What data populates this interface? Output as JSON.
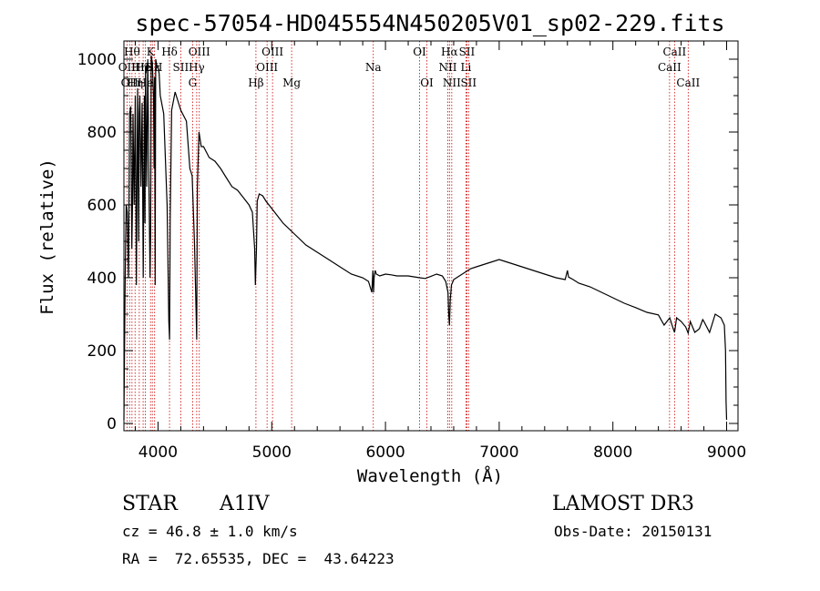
{
  "chart_data": {
    "type": "line",
    "title": "spec-57054-HD045554N450205V01_sp02-229.fits",
    "xlabel": "Wavelength (Å)",
    "ylabel": "Flux (relative)",
    "xlim": [
      3700,
      9100
    ],
    "ylim": [
      -20,
      1050
    ],
    "xticks": [
      4000,
      5000,
      6000,
      7000,
      8000,
      9000
    ],
    "yticks": [
      0,
      200,
      400,
      600,
      800,
      1000
    ],
    "series": [
      {
        "name": "flux",
        "color": "#000000",
        "x": [
          3700,
          3705,
          3710,
          3715,
          3720,
          3730,
          3740,
          3750,
          3760,
          3770,
          3775,
          3780,
          3790,
          3800,
          3810,
          3820,
          3830,
          3835,
          3840,
          3850,
          3860,
          3870,
          3880,
          3885,
          3890,
          3900,
          3910,
          3920,
          3930,
          3935,
          3940,
          3950,
          3960,
          3965,
          3970,
          3975,
          3980,
          3990,
          4000,
          4010,
          4020,
          4050,
          4080,
          4095,
          4101,
          4107,
          4120,
          4150,
          4200,
          4250,
          4280,
          4300,
          4320,
          4335,
          4340,
          4346,
          4360,
          4380,
          4400,
          4450,
          4500,
          4550,
          4600,
          4650,
          4700,
          4750,
          4800,
          4830,
          4850,
          4856,
          4861,
          4866,
          4872,
          4890,
          4920,
          4950,
          5000,
          5050,
          5100,
          5200,
          5300,
          5400,
          5500,
          5600,
          5700,
          5800,
          5850,
          5880,
          5890,
          5895,
          5900,
          5910,
          5920,
          5950,
          6000,
          6050,
          6100,
          6200,
          6300,
          6350,
          6400,
          6450,
          6500,
          6530,
          6550,
          6556,
          6563,
          6570,
          6580,
          6600,
          6650,
          6700,
          6750,
          6800,
          6900,
          7000,
          7050,
          7100,
          7200,
          7300,
          7400,
          7500,
          7580,
          7600,
          7610,
          7650,
          7700,
          7800,
          7900,
          8000,
          8100,
          8200,
          8300,
          8400,
          8450,
          8500,
          8530,
          8542,
          8560,
          8600,
          8640,
          8662,
          8680,
          8720,
          8760,
          8790,
          8800,
          8850,
          8900,
          8950,
          8980,
          8990,
          8995,
          9000
        ],
        "values": [
          10,
          180,
          350,
          500,
          600,
          580,
          400,
          850,
          870,
          480,
          600,
          850,
          600,
          900,
          380,
          920,
          500,
          850,
          900,
          650,
          880,
          400,
          900,
          550,
          980,
          650,
          1000,
          650,
          400,
          520,
          1010,
          990,
          900,
          700,
          950,
          380,
          1000,
          980,
          980,
          960,
          900,
          850,
          600,
          280,
          230,
          560,
          860,
          910,
          860,
          830,
          700,
          680,
          500,
          300,
          230,
          650,
          800,
          760,
          760,
          730,
          720,
          700,
          675,
          650,
          640,
          620,
          600,
          580,
          480,
          380,
          430,
          480,
          610,
          630,
          625,
          610,
          590,
          570,
          550,
          520,
          490,
          470,
          450,
          430,
          410,
          400,
          390,
          360,
          420,
          360,
          400,
          420,
          410,
          405,
          410,
          408,
          405,
          405,
          400,
          398,
          404,
          410,
          405,
          390,
          360,
          300,
          270,
          340,
          380,
          395,
          405,
          415,
          425,
          430,
          440,
          450,
          445,
          440,
          430,
          420,
          410,
          400,
          395,
          420,
          402,
          395,
          385,
          375,
          360,
          345,
          330,
          318,
          305,
          298,
          270,
          290,
          260,
          250,
          290,
          280,
          265,
          248,
          280,
          250,
          260,
          285,
          280,
          250,
          300,
          290,
          270,
          200,
          60,
          10
        ]
      }
    ],
    "spectral_lines": [
      {
        "wavelength": 3727,
        "label": "OII",
        "row": 2
      },
      {
        "wavelength": 3750,
        "label": "OII",
        "row": 3
      },
      {
        "wavelength": 3771,
        "label": "Hθ",
        "row": 1
      },
      {
        "wavelength": 3798,
        "label": "Hη",
        "row": 3
      },
      {
        "wavelength": 3835,
        "label": "Hη",
        "row": 2
      },
      {
        "wavelength": 3869,
        "label": "He",
        "row": 2
      },
      {
        "wavelength": 3889,
        "label": "He",
        "row": 3
      },
      {
        "wavelength": 3934,
        "label": "K",
        "row": 1
      },
      {
        "wavelength": 3950,
        "label": "Hε",
        "row": 2
      },
      {
        "wavelength": 3970,
        "label": "SII",
        "row": 2
      },
      {
        "wavelength": 4101,
        "label": "Hδ",
        "row": 1
      },
      {
        "wavelength": 4200,
        "label": "SII",
        "row": 2
      },
      {
        "wavelength": 4304,
        "label": "G",
        "row": 3
      },
      {
        "wavelength": 4340,
        "label": "Hγ",
        "row": 2
      },
      {
        "wavelength": 4363,
        "label": "OIII",
        "row": 1
      },
      {
        "wavelength": 4861,
        "label": "Hβ",
        "row": 3
      },
      {
        "wavelength": 4959,
        "label": "OIII",
        "row": 2
      },
      {
        "wavelength": 5007,
        "label": "OIII",
        "row": 1
      },
      {
        "wavelength": 5175,
        "label": "Mg",
        "row": 3
      },
      {
        "wavelength": 5893,
        "label": "Na",
        "row": 2
      },
      {
        "wavelength": 6300,
        "label": "OI",
        "row": 1
      },
      {
        "wavelength": 6364,
        "label": "OI",
        "row": 3
      },
      {
        "wavelength": 6548,
        "label": "NII",
        "row": 2
      },
      {
        "wavelength": 6563,
        "label": "Hα",
        "row": 1
      },
      {
        "wavelength": 6583,
        "label": "NII",
        "row": 3
      },
      {
        "wavelength": 6708,
        "label": "Li",
        "row": 2
      },
      {
        "wavelength": 6716,
        "label": "SII",
        "row": 1
      },
      {
        "wavelength": 6731,
        "label": "SII",
        "row": 3
      },
      {
        "wavelength": 8498,
        "label": "CaII",
        "row": 2
      },
      {
        "wavelength": 8542,
        "label": "CaII",
        "row": 1
      },
      {
        "wavelength": 8662,
        "label": "CaII",
        "row": 3
      }
    ],
    "line_color": "#cc0000"
  },
  "info": {
    "class": "STAR",
    "subclass": "A1IV",
    "survey": "LAMOST DR3",
    "cz": "cz = 46.8 ± 1.0 km/s",
    "obs_date": "Obs-Date: 20150131",
    "coords": "RA =  72.65535, DEC =  43.64223"
  }
}
